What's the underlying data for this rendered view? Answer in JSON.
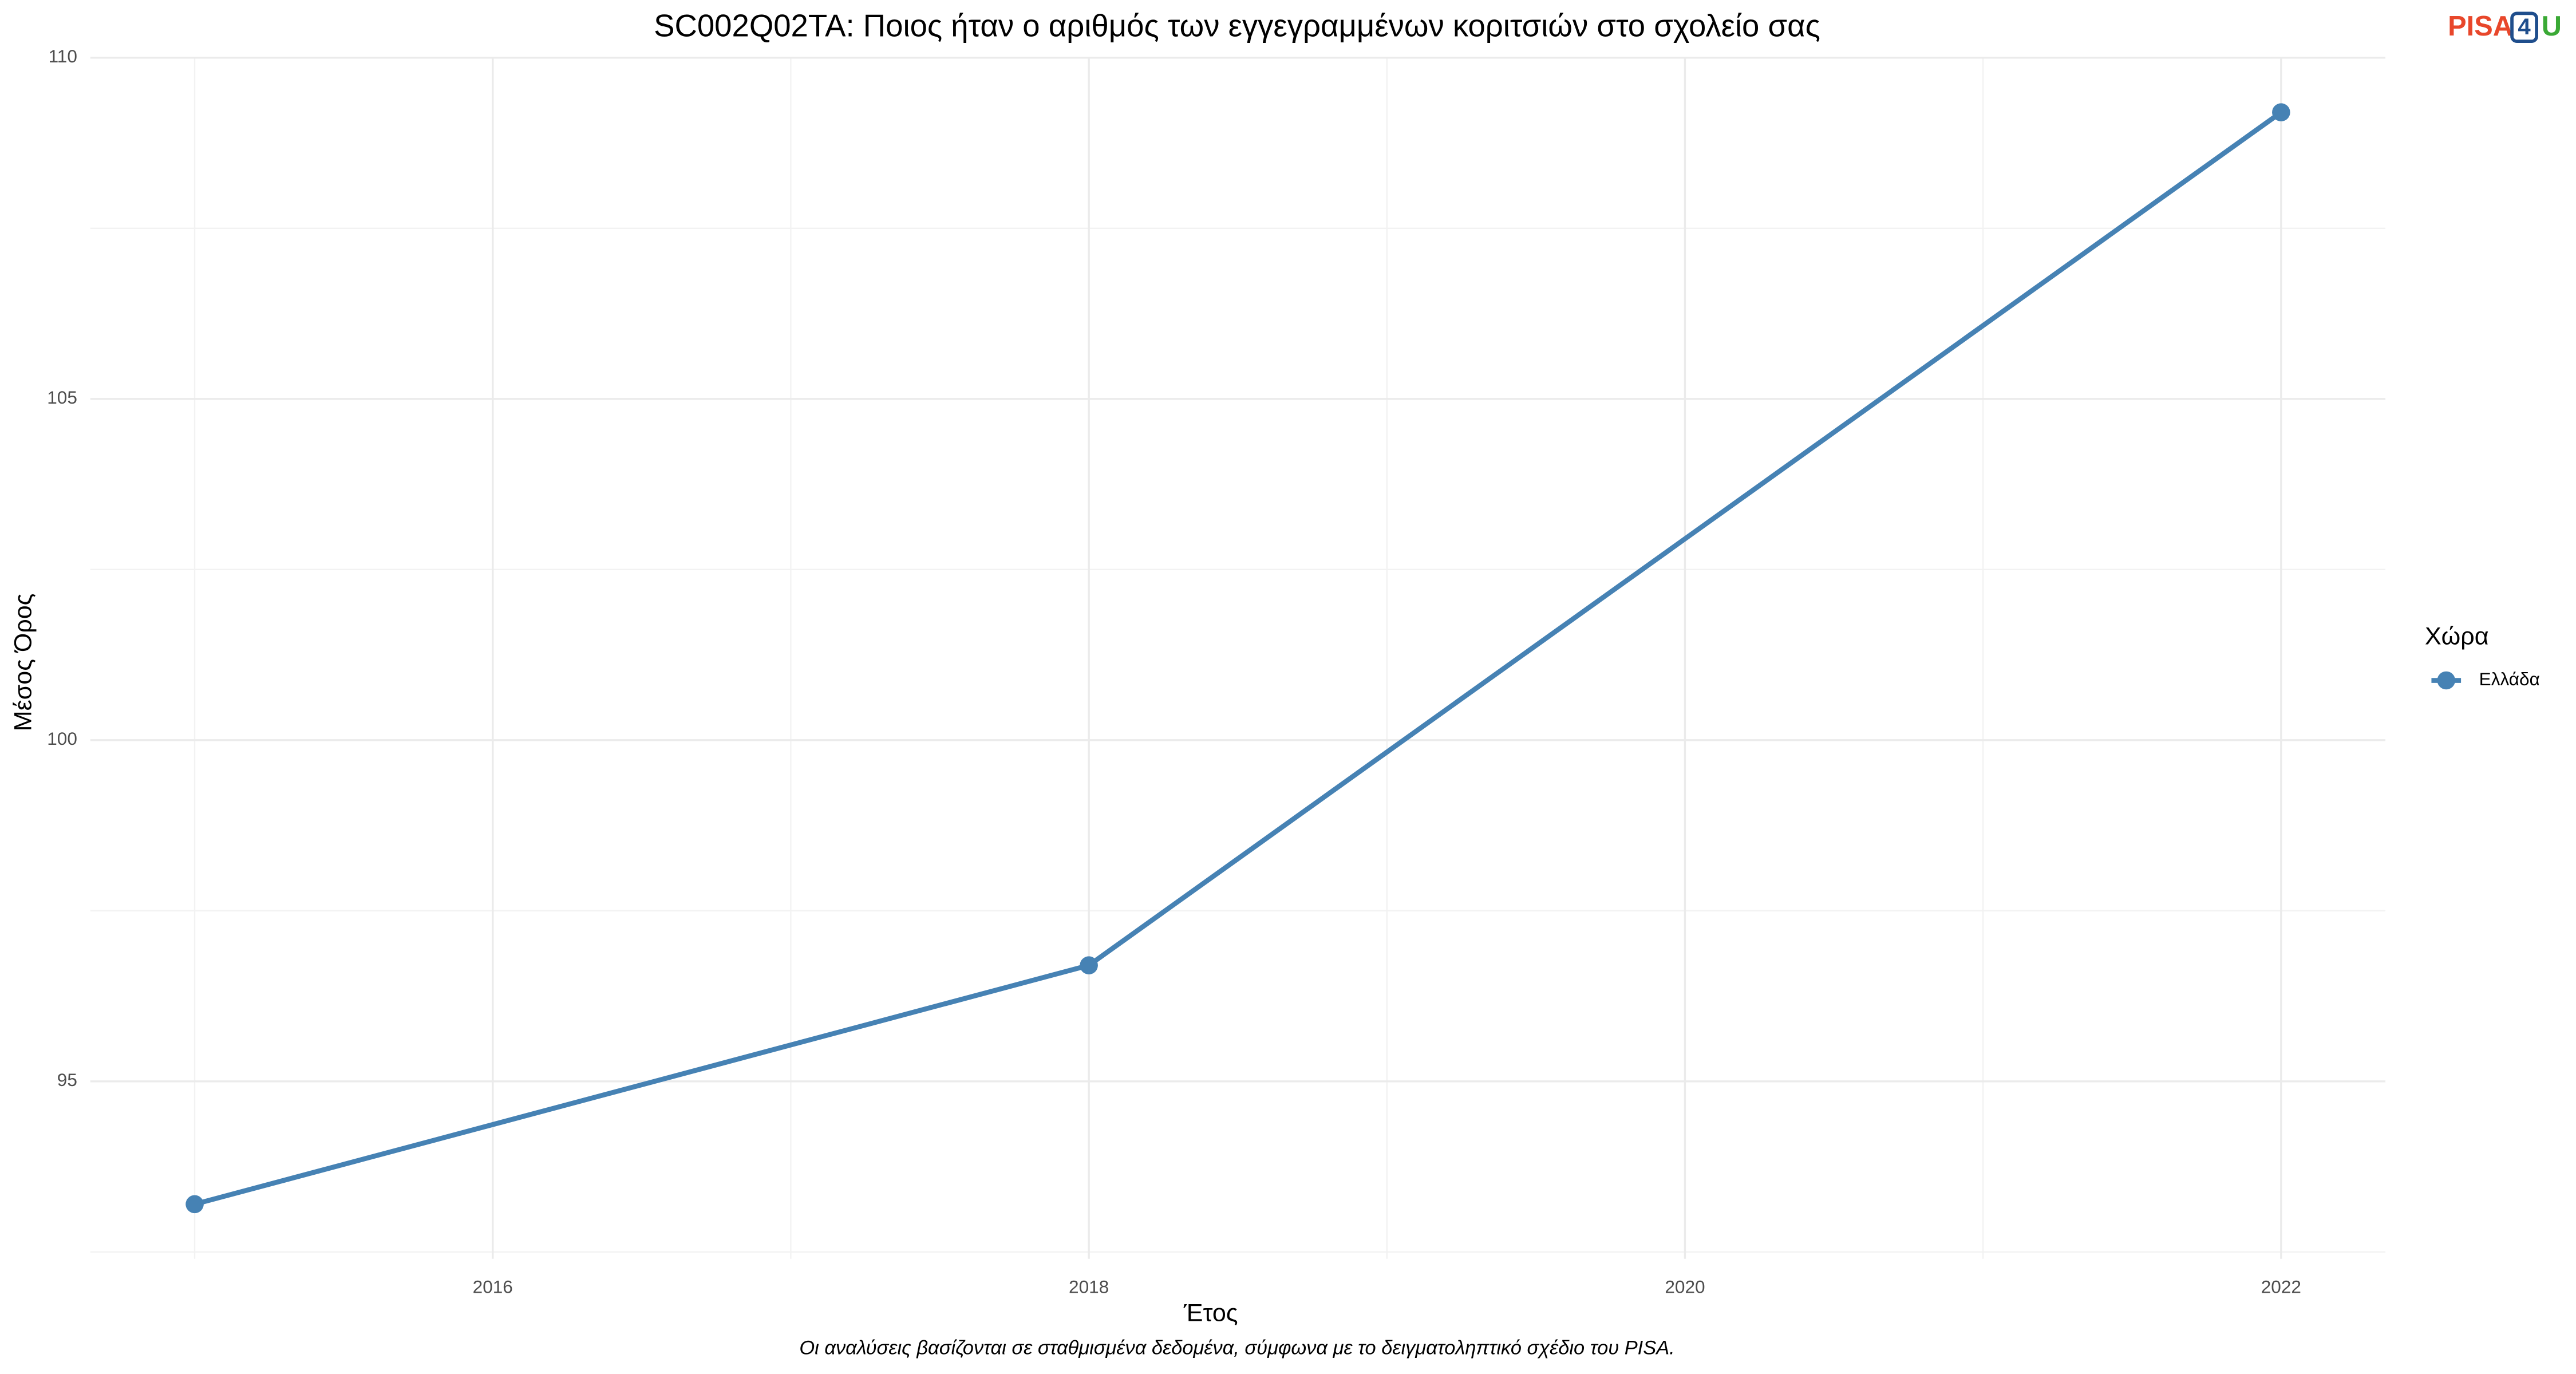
{
  "chart_data": {
    "type": "line",
    "title": "SC002Q02TA: Ποιος ήταν ο αριθμός των εγγεγραμμένων κοριτσιών στο σχολείο σας",
    "x_label": "Έτος",
    "y_label": "Μέσος Όρος",
    "caption": "Οι αναλύσεις βασίζονται σε σταθμισμένα δεδομένα, σύμφωνα με το δειγματοληπτικό σχέδιο του PISA.",
    "x": [
      2015,
      2018,
      2022
    ],
    "series": [
      {
        "name": "Ελλάδα",
        "color": "#4682b4",
        "values": [
          93.2,
          96.7,
          109.2
        ]
      }
    ],
    "xlim": [
      2014.65,
      2022.35
    ],
    "xticks": [
      2016,
      2018,
      2020,
      2022
    ],
    "ylim": [
      92.4,
      110
    ],
    "yticks": [
      95,
      100,
      105,
      110
    ],
    "grid": true,
    "legend_title": "Χώρα",
    "legend_position": "right"
  },
  "logo": {
    "parts": [
      "PISA",
      "4",
      "U"
    ]
  }
}
